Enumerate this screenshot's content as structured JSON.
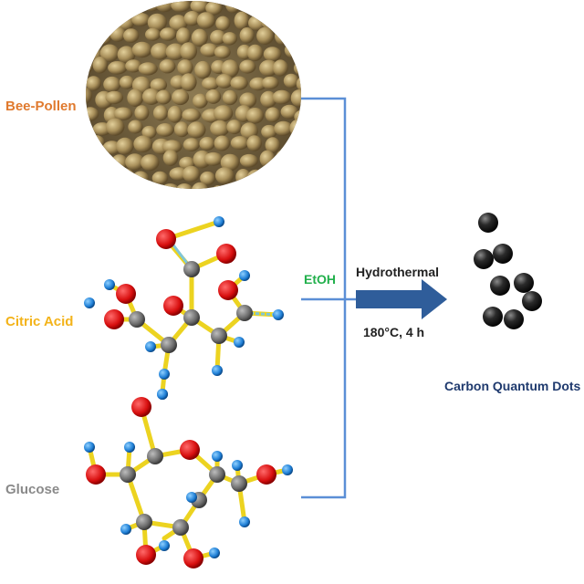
{
  "labels": {
    "bee_pollen": "Bee-Pollen",
    "citric_acid": "Citric Acid",
    "glucose": "Glucose",
    "solvent": "EtOH",
    "process": "Hydrothermal",
    "conditions": "180°C,  4 h",
    "product": "Carbon Quantum Dots"
  },
  "colors": {
    "bee_pollen": "#e07a2e",
    "citric_acid": "#f3b31a",
    "glucose": "#8a8a8a",
    "solvent": "#22b04c",
    "product": "#1f3a6e",
    "bracket": "#5b8fd6",
    "arrow": "#2f5d9a"
  },
  "icons": {
    "pollen": "pollen-grains-photo",
    "citric": "citric-acid-molecule",
    "glucose": "glucose-molecule",
    "dots": "carbon-dot-spheres"
  }
}
